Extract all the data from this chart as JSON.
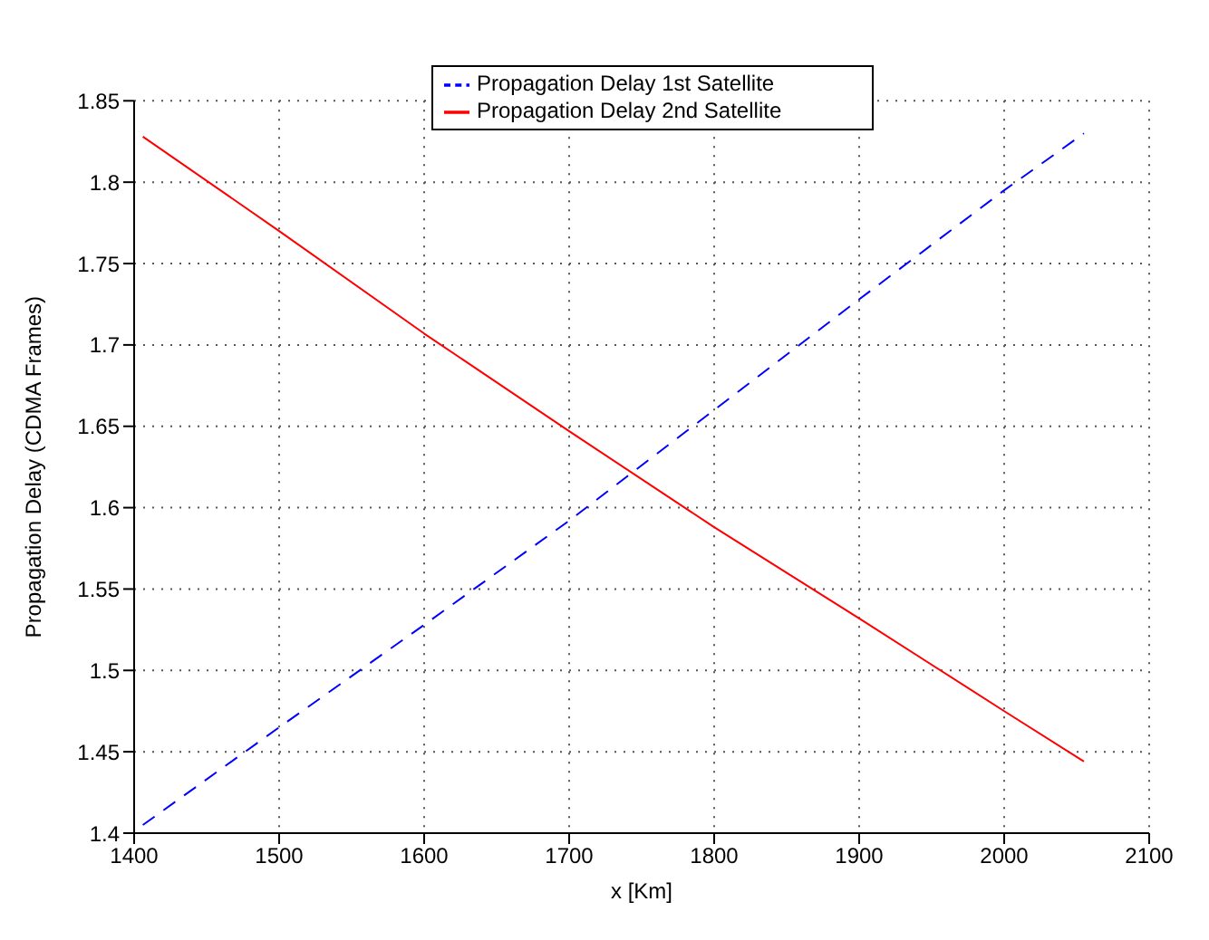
{
  "chart_data": {
    "type": "line",
    "xlabel": "x [Km]",
    "ylabel": "Propagation Delay (CDMA Frames)",
    "x": [
      1406,
      1500,
      1600,
      1700,
      1800,
      1900,
      2000,
      2055
    ],
    "series": [
      {
        "name": "Propagation Delay 1st Satellite",
        "color": "#0000ff",
        "line_style": "dashed",
        "values": [
          1.405,
          1.465,
          1.528,
          1.592,
          1.66,
          1.728,
          1.795,
          1.83
        ]
      },
      {
        "name": "Propagation Delay 2nd Satellite",
        "color": "#ff0000",
        "line_style": "solid",
        "values": [
          1.828,
          1.77,
          1.707,
          1.647,
          1.588,
          1.532,
          1.475,
          1.444
        ]
      }
    ],
    "xlim": [
      1400,
      2100
    ],
    "xticks": [
      1400,
      1500,
      1600,
      1700,
      1800,
      1900,
      2000,
      2100
    ],
    "ylim": [
      1.4,
      1.85
    ],
    "yticks": [
      1.4,
      1.45,
      1.5,
      1.55,
      1.6,
      1.65,
      1.7,
      1.75,
      1.8,
      1.85
    ],
    "grid": true,
    "legend": "top",
    "marker": "none"
  }
}
